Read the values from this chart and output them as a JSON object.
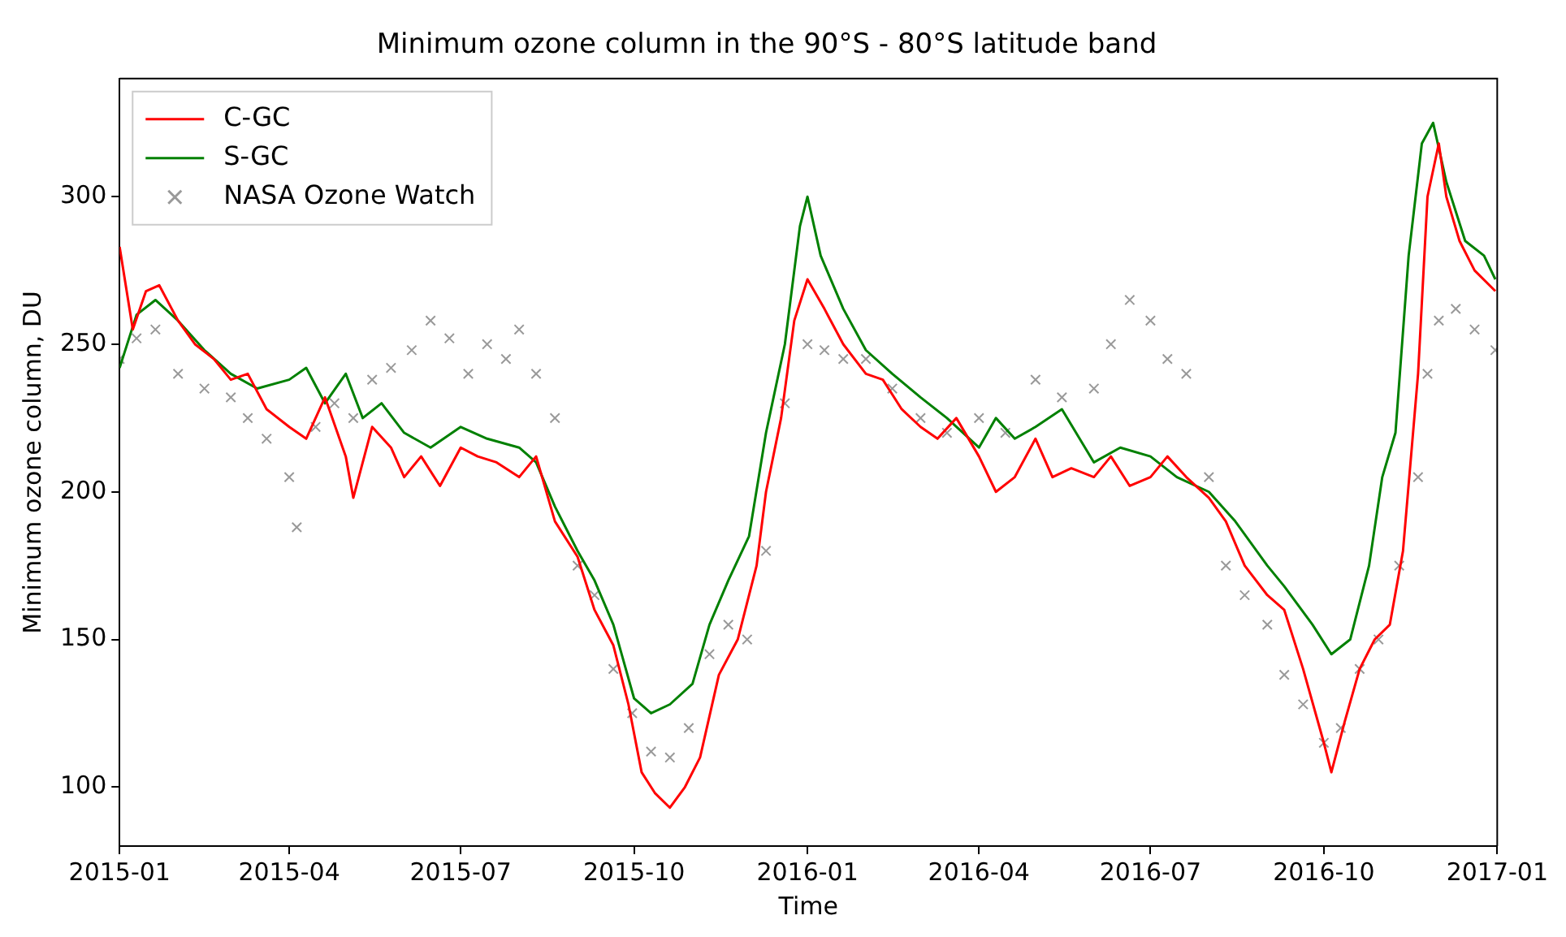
{
  "chart_data": {
    "type": "line",
    "title": "Minimum ozone column in the 90°S - 80°S latitude band",
    "xlabel": "Time",
    "ylabel": "Minimum ozone column, DU",
    "xlim": [
      "2015-01",
      "2017-01"
    ],
    "xticks": [
      "2015-01",
      "2015-04",
      "2015-07",
      "2015-10",
      "2016-01",
      "2016-04",
      "2016-07",
      "2016-10",
      "2017-01"
    ],
    "ylim": [
      80,
      340
    ],
    "yticks": [
      100,
      150,
      200,
      250,
      300
    ],
    "grid": false,
    "legend": "top left",
    "series": [
      {
        "name": "C-GC",
        "type": "line",
        "color": "#ff0000",
        "marker": "none",
        "x": [
          "2015-01-01",
          "2015-01-08",
          "2015-01-15",
          "2015-01-22",
          "2015-02-01",
          "2015-02-10",
          "2015-02-20",
          "2015-03-01",
          "2015-03-10",
          "2015-03-20",
          "2015-04-01",
          "2015-04-10",
          "2015-04-20",
          "2015-05-01",
          "2015-05-05",
          "2015-05-15",
          "2015-05-25",
          "2015-06-01",
          "2015-06-10",
          "2015-06-20",
          "2015-07-01",
          "2015-07-10",
          "2015-07-20",
          "2015-08-01",
          "2015-08-10",
          "2015-08-20",
          "2015-09-01",
          "2015-09-10",
          "2015-09-20",
          "2015-09-28",
          "2015-10-05",
          "2015-10-12",
          "2015-10-20",
          "2015-10-28",
          "2015-11-05",
          "2015-11-15",
          "2015-11-25",
          "2015-12-05",
          "2015-12-10",
          "2015-12-18",
          "2015-12-25",
          "2016-01-01",
          "2016-01-10",
          "2016-01-20",
          "2016-02-01",
          "2016-02-10",
          "2016-02-20",
          "2016-03-01",
          "2016-03-10",
          "2016-03-20",
          "2016-04-01",
          "2016-04-10",
          "2016-04-20",
          "2016-05-01",
          "2016-05-10",
          "2016-05-20",
          "2016-06-01",
          "2016-06-10",
          "2016-06-20",
          "2016-07-01",
          "2016-07-10",
          "2016-07-20",
          "2016-08-01",
          "2016-08-10",
          "2016-08-20",
          "2016-09-01",
          "2016-09-10",
          "2016-09-20",
          "2016-10-01",
          "2016-10-05",
          "2016-10-12",
          "2016-10-20",
          "2016-10-28",
          "2016-11-05",
          "2016-11-12",
          "2016-11-20",
          "2016-11-25",
          "2016-12-01",
          "2016-12-05",
          "2016-12-12",
          "2016-12-20",
          "2016-12-31"
        ],
        "values": [
          283,
          255,
          268,
          270,
          258,
          250,
          245,
          238,
          240,
          228,
          222,
          218,
          232,
          212,
          198,
          222,
          215,
          205,
          212,
          202,
          215,
          212,
          210,
          205,
          212,
          190,
          178,
          160,
          148,
          128,
          105,
          98,
          93,
          100,
          110,
          138,
          150,
          175,
          200,
          225,
          258,
          272,
          262,
          250,
          240,
          238,
          228,
          222,
          218,
          225,
          212,
          200,
          205,
          218,
          205,
          208,
          205,
          212,
          202,
          205,
          212,
          205,
          198,
          190,
          175,
          165,
          160,
          140,
          115,
          105,
          122,
          140,
          150,
          155,
          180,
          240,
          300,
          318,
          300,
          285,
          275,
          268
        ]
      },
      {
        "name": "S-GC",
        "type": "line",
        "color": "#008000",
        "marker": "none",
        "x": [
          "2015-01-01",
          "2015-01-10",
          "2015-01-20",
          "2015-02-01",
          "2015-02-15",
          "2015-03-01",
          "2015-03-15",
          "2015-04-01",
          "2015-04-10",
          "2015-04-20",
          "2015-05-01",
          "2015-05-10",
          "2015-05-20",
          "2015-06-01",
          "2015-06-15",
          "2015-07-01",
          "2015-07-15",
          "2015-08-01",
          "2015-08-10",
          "2015-08-20",
          "2015-09-01",
          "2015-09-10",
          "2015-09-20",
          "2015-10-01",
          "2015-10-10",
          "2015-10-20",
          "2015-11-01",
          "2015-11-10",
          "2015-11-20",
          "2015-12-01",
          "2015-12-10",
          "2015-12-20",
          "2015-12-28",
          "2016-01-01",
          "2016-01-08",
          "2016-01-20",
          "2016-02-01",
          "2016-02-15",
          "2016-03-01",
          "2016-03-15",
          "2016-04-01",
          "2016-04-10",
          "2016-04-20",
          "2016-05-01",
          "2016-05-15",
          "2016-06-01",
          "2016-06-15",
          "2016-07-01",
          "2016-07-15",
          "2016-08-01",
          "2016-08-15",
          "2016-09-01",
          "2016-09-10",
          "2016-09-25",
          "2016-10-05",
          "2016-10-15",
          "2016-10-25",
          "2016-11-01",
          "2016-11-08",
          "2016-11-15",
          "2016-11-22",
          "2016-11-28",
          "2016-12-05",
          "2016-12-15",
          "2016-12-25",
          "2016-12-31"
        ],
        "values": [
          242,
          260,
          265,
          258,
          248,
          240,
          235,
          238,
          242,
          230,
          240,
          225,
          230,
          220,
          215,
          222,
          218,
          215,
          210,
          195,
          180,
          170,
          155,
          130,
          125,
          128,
          135,
          155,
          170,
          185,
          220,
          250,
          290,
          300,
          280,
          262,
          248,
          240,
          232,
          225,
          215,
          225,
          218,
          222,
          228,
          210,
          215,
          212,
          205,
          200,
          190,
          175,
          168,
          155,
          145,
          150,
          175,
          205,
          220,
          280,
          318,
          325,
          305,
          285,
          280,
          272
        ]
      },
      {
        "name": "NASA Ozone Watch",
        "type": "scatter",
        "color": "#555555",
        "marker": "cross",
        "x": [
          "2015-01-01",
          "2015-01-10",
          "2015-01-20",
          "2015-02-01",
          "2015-02-15",
          "2015-03-01",
          "2015-03-10",
          "2015-03-20",
          "2015-04-01",
          "2015-04-05",
          "2015-04-15",
          "2015-04-25",
          "2015-05-05",
          "2015-05-15",
          "2015-05-25",
          "2015-06-05",
          "2015-06-15",
          "2015-06-25",
          "2015-07-05",
          "2015-07-15",
          "2015-07-25",
          "2015-08-01",
          "2015-08-10",
          "2015-08-20",
          "2015-09-01",
          "2015-09-10",
          "2015-09-20",
          "2015-09-30",
          "2015-10-10",
          "2015-10-20",
          "2015-10-30",
          "2015-11-10",
          "2015-11-20",
          "2015-11-30",
          "2015-12-10",
          "2015-12-20",
          "2016-01-01",
          "2016-01-10",
          "2016-01-20",
          "2016-02-01",
          "2016-02-15",
          "2016-03-01",
          "2016-03-15",
          "2016-04-01",
          "2016-04-15",
          "2016-05-01",
          "2016-05-15",
          "2016-06-01",
          "2016-06-10",
          "2016-06-20",
          "2016-07-01",
          "2016-07-10",
          "2016-07-20",
          "2016-08-01",
          "2016-08-10",
          "2016-08-20",
          "2016-09-01",
          "2016-09-10",
          "2016-09-20",
          "2016-10-01",
          "2016-10-10",
          "2016-10-20",
          "2016-10-30",
          "2016-11-10",
          "2016-11-20",
          "2016-11-25",
          "2016-12-01",
          "2016-12-10",
          "2016-12-20",
          "2016-12-31"
        ],
        "values": [
          245,
          252,
          255,
          240,
          235,
          232,
          225,
          218,
          205,
          188,
          222,
          230,
          225,
          238,
          242,
          248,
          258,
          252,
          240,
          250,
          245,
          255,
          240,
          225,
          175,
          165,
          140,
          125,
          112,
          110,
          120,
          145,
          155,
          150,
          180,
          230,
          250,
          248,
          245,
          245,
          235,
          225,
          220,
          225,
          220,
          238,
          232,
          235,
          250,
          265,
          258,
          245,
          240,
          205,
          175,
          165,
          155,
          138,
          128,
          115,
          120,
          140,
          150,
          175,
          205,
          240,
          258,
          262,
          255,
          248
        ]
      }
    ]
  }
}
